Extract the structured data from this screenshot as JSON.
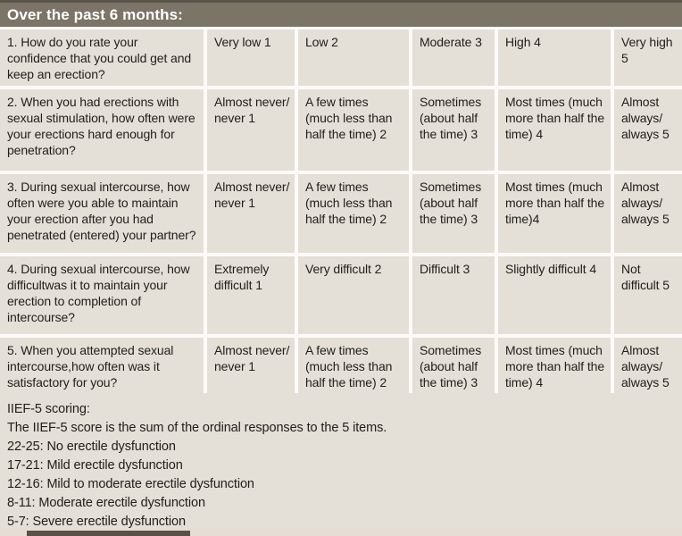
{
  "header": {
    "title": "Over the past 6 months:"
  },
  "table": {
    "rows": [
      {
        "question": "1. How do you rate your confidence that you could get and keep an erection?",
        "options": [
          "Very low 1",
          "Low 2",
          "Moderate 3",
          "High 4",
          "Very high 5"
        ]
      },
      {
        "question": "2. When you had erections with sexual stimulation, how often were your erections hard enough for penetration?",
        "options": [
          "Almost never/ never 1",
          "A few times (much less than half the time) 2",
          "Sometimes (about half the time) 3",
          "Most times (much more than half the time) 4",
          "Almost always/ always 5"
        ]
      },
      {
        "question": "3. During sexual intercourse, how often were you able to maintain your erection after you had penetrated (entered) your partner?",
        "options": [
          "Almost never/ never 1",
          "A few times (much less than half the time) 2",
          "Sometimes (about half the time) 3",
          "Most times (much more than half the time)4",
          "Almost always/ always 5"
        ]
      },
      {
        "question": "4. During sexual intercourse, how difficultwas it to maintain your erection to completion of intercourse?",
        "options": [
          "Extremely difficult 1",
          "Very difficult 2",
          "Difficult 3",
          "Slightly difficult 4",
          "Not difficult 5"
        ]
      },
      {
        "question": "5. When you attempted sexual intercourse,how often was it satisfactory for you?",
        "options": [
          "Almost never/ never 1",
          "A few times (much less than half the time) 2",
          "Sometimes (about half the time) 3",
          "Most times (much more than half the time) 4",
          "Almost always/ always 5"
        ]
      }
    ]
  },
  "footer": {
    "lines": [
      "IIEF-5 scoring:",
      "The IIEF-5 score is the sum of the ordinal responses to the 5 items.",
      "22-25: No erectile dysfunction",
      "17-21: Mild erectile dysfunction",
      "12-16: Mild to moderate erectile dysfunction",
      "8-11: Moderate erectile dysfunction",
      "5-7: Severe erectile dysfunction"
    ]
  },
  "colors": {
    "header_bg": "#7c7466",
    "header_text": "#ffffff",
    "top_edge": "#5a554c",
    "cell_bg": "#e4e0d8",
    "footer_bg": "#e4dfd7",
    "gap_color": "#fcfbf9",
    "page_bg": "#fbfaf7",
    "text_color": "#21201d",
    "bottom_bar": "#56524a"
  }
}
